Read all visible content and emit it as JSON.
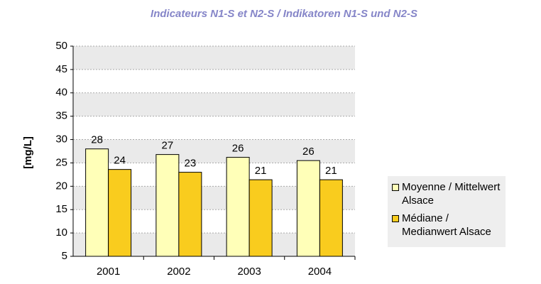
{
  "chart_data": {
    "type": "bar",
    "title": "Indicateurs N1-S et N2-S / Indikatoren N1-S und N2-S",
    "y_label": "[mg/L]",
    "categories": [
      "2001",
      "2002",
      "2003",
      "2004"
    ],
    "series": [
      {
        "name": "Moyenne / Mittelwert Alsace",
        "color": "#ffffb8",
        "values": [
          28,
          26.8,
          26.2,
          25.5
        ],
        "value_labels": [
          "28",
          "27",
          "26",
          "26"
        ]
      },
      {
        "name": "Médiane / Medianwert Alsace",
        "color": "#f9cc1e",
        "values": [
          23.6,
          23,
          21.4,
          21.4
        ],
        "value_labels": [
          "24",
          "23",
          "21",
          "21"
        ]
      }
    ],
    "ylim": [
      5,
      50
    ],
    "yticks": [
      5,
      10,
      15,
      20,
      25,
      30,
      35,
      40,
      45,
      50
    ],
    "grid": true,
    "legend": "right"
  }
}
